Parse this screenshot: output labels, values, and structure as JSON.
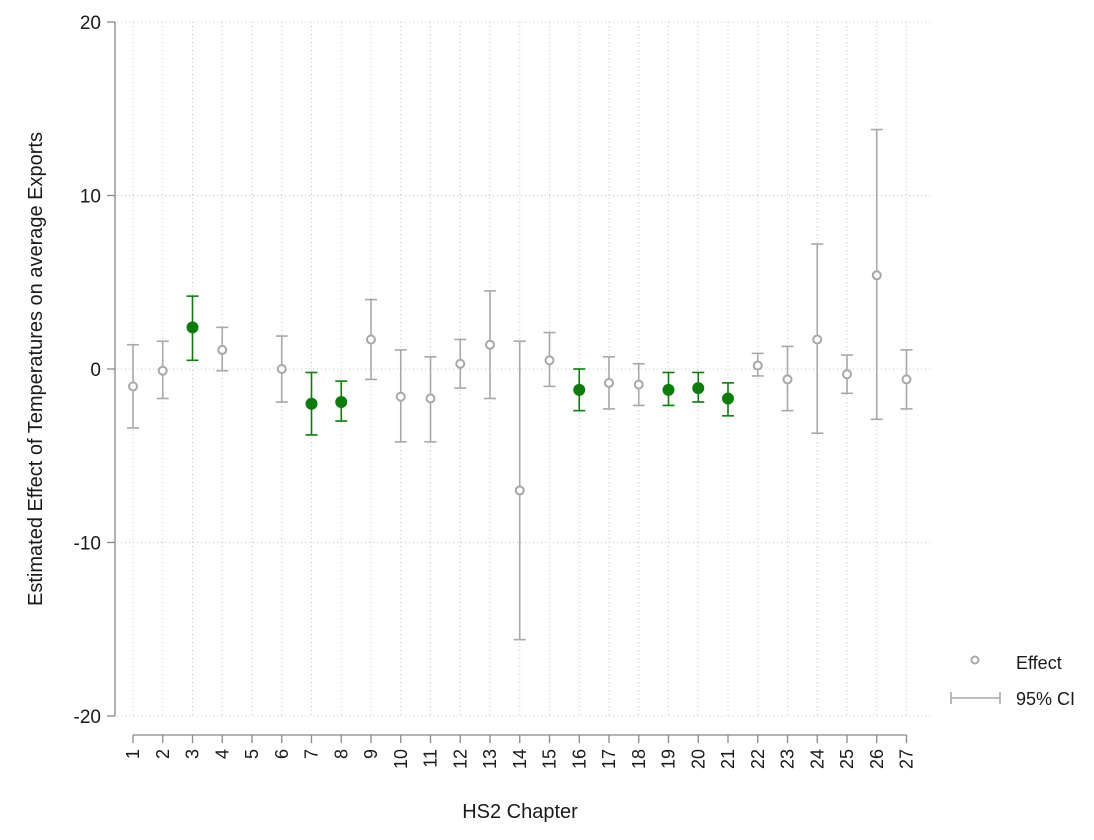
{
  "chart_data": {
    "type": "scatter",
    "title": "",
    "xlabel": "HS2 Chapter",
    "ylabel": "Estimated Effect of Temperatures on average Exports",
    "ylim": [
      -20,
      20
    ],
    "yticks": [
      -20,
      -10,
      0,
      10,
      20
    ],
    "xticks": [
      1,
      2,
      3,
      4,
      5,
      6,
      7,
      8,
      9,
      10,
      11,
      12,
      13,
      14,
      15,
      16,
      17,
      18,
      19,
      20,
      21,
      22,
      23,
      24,
      25,
      26,
      27
    ],
    "grid": true,
    "legend_position": "bottom-right",
    "colors": {
      "significant": "#0a7d0a",
      "insignificant": "#a8a8a8"
    },
    "legend": [
      {
        "label": "Effect",
        "marker": "hollow-circle"
      },
      {
        "label": "95% CI",
        "marker": "capped-line"
      }
    ],
    "points": [
      {
        "x": 1,
        "y": -1.0,
        "lo": -3.4,
        "hi": 1.4,
        "significant": false
      },
      {
        "x": 2,
        "y": -0.1,
        "lo": -1.7,
        "hi": 1.6,
        "significant": false
      },
      {
        "x": 3,
        "y": 2.4,
        "lo": 0.5,
        "hi": 4.2,
        "significant": true
      },
      {
        "x": 4,
        "y": 1.1,
        "lo": -0.1,
        "hi": 2.4,
        "significant": false
      },
      {
        "x": 6,
        "y": 0.0,
        "lo": -1.9,
        "hi": 1.9,
        "significant": false
      },
      {
        "x": 7,
        "y": -2.0,
        "lo": -3.8,
        "hi": -0.2,
        "significant": true
      },
      {
        "x": 8,
        "y": -1.9,
        "lo": -3.0,
        "hi": -0.7,
        "significant": true
      },
      {
        "x": 9,
        "y": 1.7,
        "lo": -0.6,
        "hi": 4.0,
        "significant": false
      },
      {
        "x": 10,
        "y": -1.6,
        "lo": -4.2,
        "hi": 1.1,
        "significant": false
      },
      {
        "x": 11,
        "y": -1.7,
        "lo": -4.2,
        "hi": 0.7,
        "significant": false
      },
      {
        "x": 12,
        "y": 0.3,
        "lo": -1.1,
        "hi": 1.7,
        "significant": false
      },
      {
        "x": 13,
        "y": 1.4,
        "lo": -1.7,
        "hi": 4.5,
        "significant": false
      },
      {
        "x": 14,
        "y": -7.0,
        "lo": -15.6,
        "hi": 1.6,
        "significant": false
      },
      {
        "x": 15,
        "y": 0.5,
        "lo": -1.0,
        "hi": 2.1,
        "significant": false
      },
      {
        "x": 16,
        "y": -1.2,
        "lo": -2.4,
        "hi": 0.0,
        "significant": true
      },
      {
        "x": 17,
        "y": -0.8,
        "lo": -2.3,
        "hi": 0.7,
        "significant": false
      },
      {
        "x": 18,
        "y": -0.9,
        "lo": -2.1,
        "hi": 0.3,
        "significant": false
      },
      {
        "x": 19,
        "y": -1.2,
        "lo": -2.1,
        "hi": -0.2,
        "significant": true
      },
      {
        "x": 20,
        "y": -1.1,
        "lo": -1.9,
        "hi": -0.2,
        "significant": true
      },
      {
        "x": 21,
        "y": -1.7,
        "lo": -2.7,
        "hi": -0.8,
        "significant": true
      },
      {
        "x": 22,
        "y": 0.2,
        "lo": -0.4,
        "hi": 0.9,
        "significant": false
      },
      {
        "x": 23,
        "y": -0.6,
        "lo": -2.4,
        "hi": 1.3,
        "significant": false
      },
      {
        "x": 24,
        "y": 1.7,
        "lo": -3.7,
        "hi": 7.2,
        "significant": false
      },
      {
        "x": 25,
        "y": -0.3,
        "lo": -1.4,
        "hi": 0.8,
        "significant": false
      },
      {
        "x": 26,
        "y": 5.4,
        "lo": -2.9,
        "hi": 13.8,
        "significant": false
      },
      {
        "x": 27,
        "y": -0.6,
        "lo": -2.3,
        "hi": 1.1,
        "significant": false
      }
    ]
  }
}
